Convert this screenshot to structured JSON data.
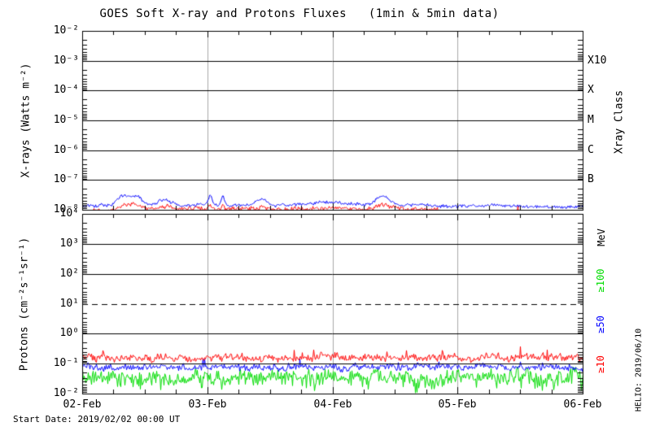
{
  "title": "GOES Soft X-ray and Protons Fluxes   (1min & 5min data)",
  "footer": {
    "start_date": "Start Date: 2019/02/02 00:00 UT",
    "credit": "HELIO: 2019/06/10"
  },
  "colors": {
    "frame": "#000000",
    "day_gridline": "#a9a9a9",
    "xray_long": "#0000ff",
    "xray_short": "#ff0000",
    "proton_ge10": "#ff0000",
    "proton_ge50": "#0000ff",
    "proton_ge100": "#00dc00"
  },
  "chart_data": [
    {
      "type": "line",
      "name": "xray-flux-panel",
      "title": "",
      "xlabel": "",
      "ylabel": "X-rays (Watts m⁻²)",
      "right_axis_label": "Xray Class",
      "ylim_exp": [
        -8,
        -2
      ],
      "grid": "decade lines solid, gray vertical day lines",
      "yticks": [
        {
          "label": "10⁻²",
          "exp": -2
        },
        {
          "label": "10⁻³",
          "exp": -3
        },
        {
          "label": "10⁻⁴",
          "exp": -4
        },
        {
          "label": "10⁻⁵",
          "exp": -5
        },
        {
          "label": "10⁻⁶",
          "exp": -6
        },
        {
          "label": "10⁻⁷",
          "exp": -7
        },
        {
          "label": "10⁻⁸",
          "exp": -8
        }
      ],
      "right_ticks": [
        {
          "label": "X10",
          "exp": -3
        },
        {
          "label": "X",
          "exp": -4
        },
        {
          "label": "M",
          "exp": -5
        },
        {
          "label": "C",
          "exp": -6
        },
        {
          "label": "B",
          "exp": -7
        }
      ],
      "x_days": [
        "02-Feb",
        "03-Feb",
        "04-Feb",
        "05-Feb",
        "06-Feb"
      ],
      "series": [
        {
          "name": "xray-short-0.5-4A",
          "color": "#ff0000",
          "base": [
            [
              0,
              -8.05
            ],
            [
              0.28,
              -8.05
            ],
            [
              0.32,
              -7.99
            ],
            [
              2.85,
              -7.99
            ],
            [
              2.95,
              -8.25
            ],
            [
              4,
              -8.25
            ]
          ],
          "noise": 0.07,
          "bumps": [
            [
              0.33,
              0.05,
              0.18
            ],
            [
              0.44,
              0.04,
              0.14
            ],
            [
              0.66,
              0.06,
              0.1
            ],
            [
              1.02,
              0.015,
              0.15
            ],
            [
              1.12,
              0.012,
              0.17
            ],
            [
              1.43,
              0.035,
              0.1
            ],
            [
              1.95,
              0.12,
              0.06
            ],
            [
              2.4,
              0.06,
              0.16
            ],
            [
              3.48,
              0.006,
              0.3
            ]
          ]
        },
        {
          "name": "xray-long-1-8A",
          "color": "#0000ff",
          "base": [
            [
              0,
              -7.85
            ],
            [
              2.85,
              -7.85
            ],
            [
              2.95,
              -7.91
            ],
            [
              4,
              -7.91
            ]
          ],
          "noise": 0.05,
          "bumps": [
            [
              0.33,
              0.05,
              0.32
            ],
            [
              0.44,
              0.04,
              0.25
            ],
            [
              0.66,
              0.06,
              0.18
            ],
            [
              1.02,
              0.015,
              0.3
            ],
            [
              1.12,
              0.012,
              0.32
            ],
            [
              1.43,
              0.035,
              0.22
            ],
            [
              1.95,
              0.12,
              0.12
            ],
            [
              2.4,
              0.06,
              0.3
            ],
            [
              3.3,
              0.15,
              0.05
            ]
          ]
        }
      ]
    },
    {
      "type": "line",
      "name": "proton-flux-panel",
      "title": "",
      "xlabel": "",
      "ylabel": "Protons (cm⁻²s⁻¹sr⁻¹)",
      "right_axis_label": "MeV",
      "ylim_exp": [
        -2,
        4
      ],
      "dashed_exp": 1,
      "grid": "decade lines solid except dashed at 10¹, gray vertical day lines",
      "yticks": [
        {
          "label": "10⁴",
          "exp": 4
        },
        {
          "label": "10³",
          "exp": 3
        },
        {
          "label": "10²",
          "exp": 2
        },
        {
          "label": "10¹",
          "exp": 1
        },
        {
          "label": "10⁰",
          "exp": 0
        },
        {
          "label": "10⁻¹",
          "exp": -1
        },
        {
          "label": "10⁻²",
          "exp": -2
        }
      ],
      "x_days": [
        "02-Feb",
        "03-Feb",
        "04-Feb",
        "05-Feb",
        "06-Feb"
      ],
      "series": [
        {
          "name": "proton-ge100MeV",
          "label": "≥100",
          "color": "#00dc00",
          "base": [
            [
              0,
              -1.43
            ],
            [
              4,
              -1.43
            ]
          ],
          "noise": 0.2,
          "spike": [
            0.3,
            0.35,
            -1
          ]
        },
        {
          "name": "proton-ge50MeV",
          "label": "≥50",
          "color": "#0000ff",
          "base": [
            [
              0,
              -1.13
            ],
            [
              4,
              -1.13
            ]
          ],
          "noise": 0.1,
          "spike": [
            0.05,
            0.22,
            1
          ]
        },
        {
          "name": "proton-ge10MeV",
          "label": "≥10",
          "color": "#ff0000",
          "base": [
            [
              0,
              -0.8
            ],
            [
              4,
              -0.8
            ]
          ],
          "noise": 0.11,
          "spike": [
            0.05,
            0.26,
            1
          ]
        }
      ],
      "right_series_labels": [
        {
          "label": "≥100",
          "color": "#00dc00"
        },
        {
          "label": "≥50",
          "color": "#0000ff"
        },
        {
          "label": "≥10",
          "color": "#ff0000"
        }
      ]
    }
  ]
}
